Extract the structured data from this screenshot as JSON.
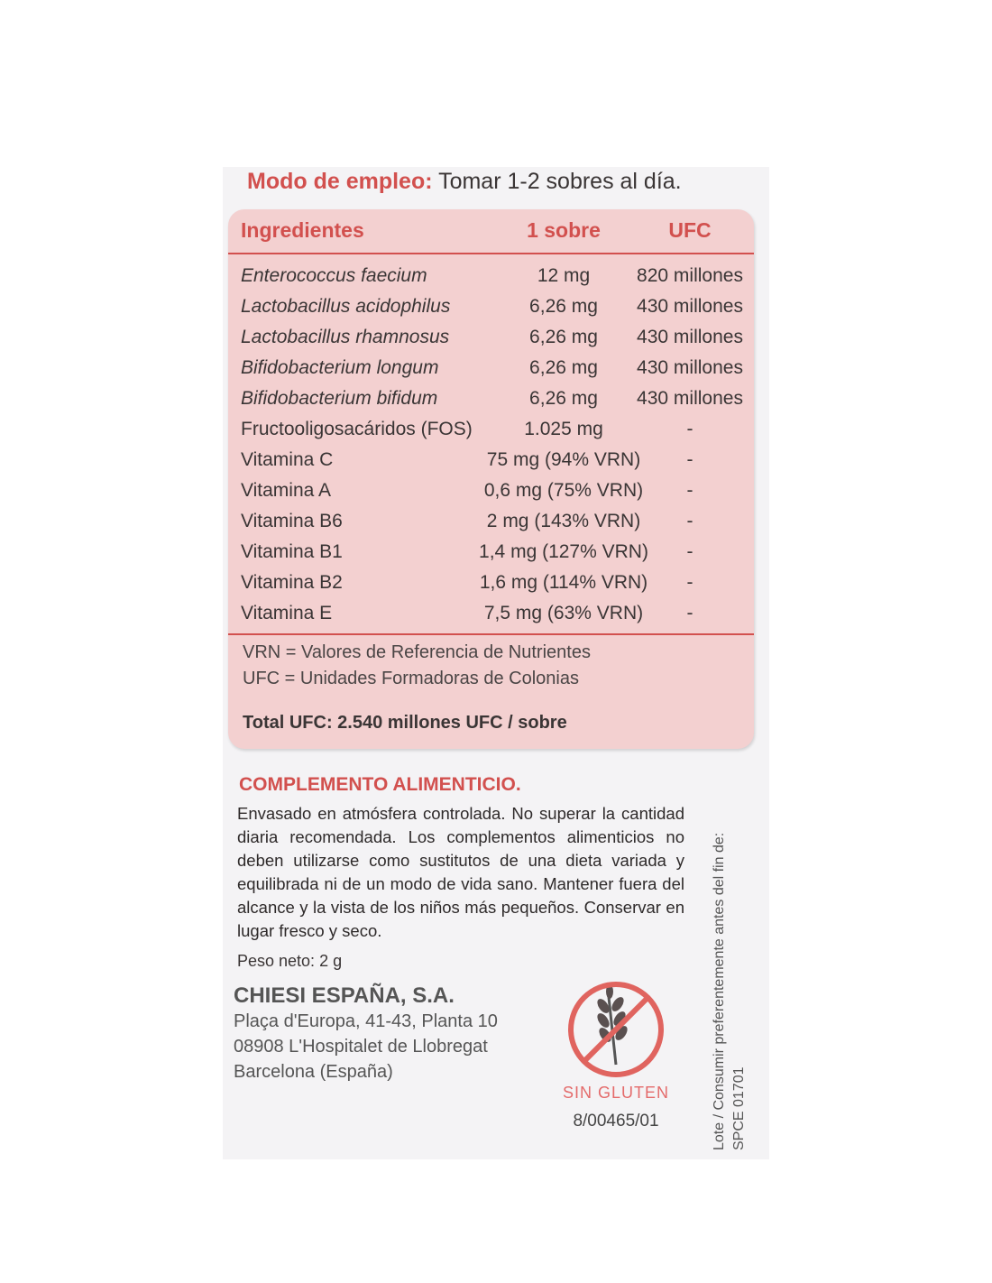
{
  "usage": {
    "label": "Modo de empleo:",
    "text": "Tomar 1-2 sobres al día."
  },
  "table": {
    "headers": [
      "Ingredientes",
      "1 sobre",
      "UFC"
    ],
    "rows": [
      {
        "name": "Enterococcus faecium",
        "italic": true,
        "qty": "12 mg",
        "ufc": "820 millones"
      },
      {
        "name": "Lactobacillus acidophilus",
        "italic": true,
        "qty": "6,26 mg",
        "ufc": "430 millones"
      },
      {
        "name": "Lactobacillus rhamnosus",
        "italic": true,
        "qty": "6,26 mg",
        "ufc": "430 millones"
      },
      {
        "name": "Bifidobacterium longum",
        "italic": true,
        "qty": "6,26 mg",
        "ufc": "430 millones"
      },
      {
        "name": "Bifidobacterium bifidum",
        "italic": true,
        "qty": "6,26 mg",
        "ufc": "430 millones"
      },
      {
        "name": "Fructooligosacáridos (FOS)",
        "italic": false,
        "qty": "1.025 mg",
        "ufc": "-"
      },
      {
        "name": "Vitamina C",
        "italic": false,
        "qty": "75 mg (94% VRN)",
        "ufc": "-"
      },
      {
        "name": "Vitamina A",
        "italic": false,
        "qty": "0,6 mg (75% VRN)",
        "ufc": "-"
      },
      {
        "name": "Vitamina B6",
        "italic": false,
        "qty": "2 mg (143% VRN)",
        "ufc": "-"
      },
      {
        "name": "Vitamina B1",
        "italic": false,
        "qty": "1,4 mg (127% VRN)",
        "ufc": "-"
      },
      {
        "name": "Vitamina B2",
        "italic": false,
        "qty": "1,6 mg (114% VRN)",
        "ufc": "-"
      },
      {
        "name": "Vitamina E",
        "italic": false,
        "qty": "7,5 mg (63% VRN)",
        "ufc": "-"
      }
    ],
    "notes": [
      "VRN = Valores de Referencia de Nutrientes",
      "UFC = Unidades Formadoras de Colonias"
    ],
    "total": "Total UFC: 2.540 millones UFC / sobre"
  },
  "complement": {
    "title": "COMPLEMENTO ALIMENTICIO.",
    "text": "Envasado en atmósfera controlada. No superar la cantidad diaria recomendada. Los complementos alimenticios no deben utilizarse como sustitutos de una dieta variada y equilibrada ni de un modo de vida sano. Mantener fuera del alcance y la vista de los niños más pequeños. Conservar en lugar fresco y seco.",
    "net_weight": "Peso neto: 2 g"
  },
  "company": {
    "name": "CHIESI ESPAÑA, S.A.",
    "address": [
      "Plaça d'Europa, 41-43, Planta 10",
      "08908 L'Hospitalet de Llobregat",
      "Barcelona (España)"
    ]
  },
  "badge": {
    "icon": "no-gluten-icon",
    "label": "SIN GLUTEN"
  },
  "registration": "8/00465/01",
  "lot": {
    "label": "Lote / Consumir preferentemente antes del fin de:",
    "code": "SPCE 01701"
  },
  "colors": {
    "accent": "#d2504e",
    "table_bg": "#f3d0d0"
  }
}
